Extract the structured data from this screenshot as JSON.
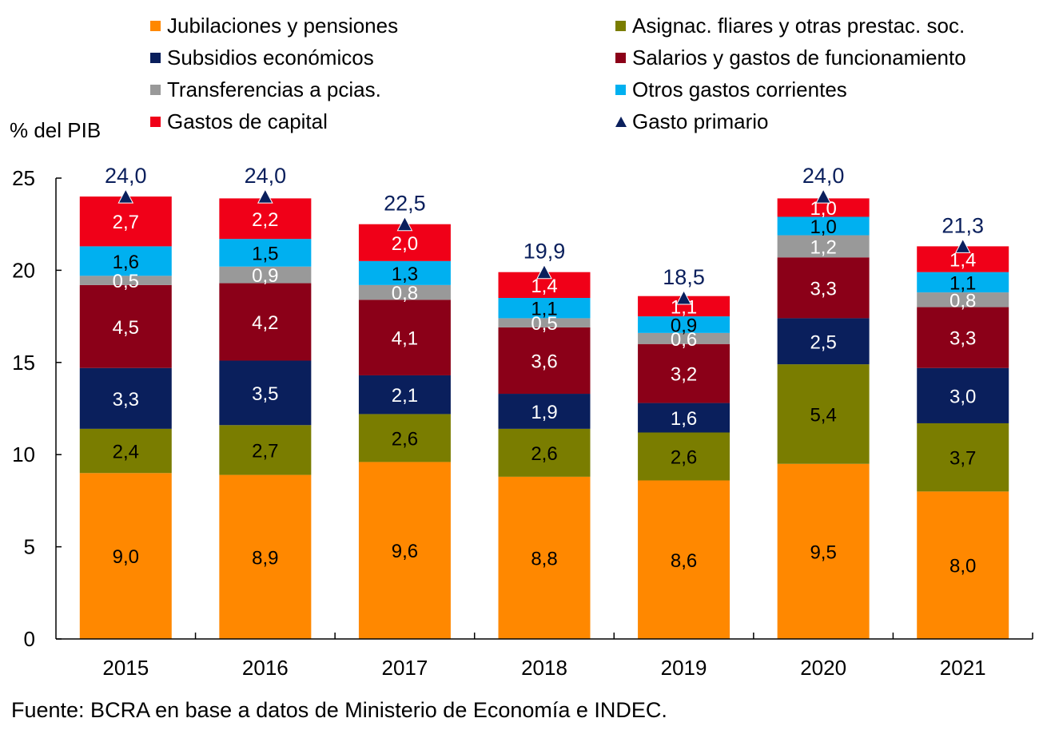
{
  "chart_data": {
    "type": "bar",
    "stacked": true,
    "title": "",
    "ylabel": "% del PIB",
    "xlabel": "",
    "ylim": [
      0,
      25
    ],
    "yticks": [
      0,
      5,
      10,
      15,
      20,
      25
    ],
    "grid": false,
    "legend_position": "top",
    "categories": [
      "2015",
      "2016",
      "2017",
      "2018",
      "2019",
      "2020",
      "2021"
    ],
    "series": [
      {
        "name": "Jubilaciones y pensiones",
        "color": "#ff8800",
        "label_color": "#000000",
        "values": [
          9.0,
          8.9,
          9.6,
          8.8,
          8.6,
          9.5,
          8.0
        ],
        "labels": [
          "9,0",
          "8,9",
          "9,6",
          "8,8",
          "8,6",
          "9,5",
          "8,0"
        ]
      },
      {
        "name": "Asignac. fliares y otras prestac. soc.",
        "color": "#7a7d00",
        "label_color": "#000000",
        "values": [
          2.4,
          2.7,
          2.6,
          2.6,
          2.6,
          5.4,
          3.7
        ],
        "labels": [
          "2,4",
          "2,7",
          "2,6",
          "2,6",
          "2,6",
          "5,4",
          "3,7"
        ]
      },
      {
        "name": "Subsidios económicos",
        "color": "#0a1f5c",
        "label_color": "#ffffff",
        "values": [
          3.3,
          3.5,
          2.1,
          1.9,
          1.6,
          2.5,
          3.0
        ],
        "labels": [
          "3,3",
          "3,5",
          "2,1",
          "1,9",
          "1,6",
          "2,5",
          "3,0"
        ]
      },
      {
        "name": "Salarios y gastos de funcionamiento",
        "color": "#8b0018",
        "label_color": "#ffffff",
        "values": [
          4.5,
          4.2,
          4.1,
          3.6,
          3.2,
          3.3,
          3.3
        ],
        "labels": [
          "4,5",
          "4,2",
          "4,1",
          "3,6",
          "3,2",
          "3,3",
          "3,3"
        ]
      },
      {
        "name": "Transferencias a pcias.",
        "color": "#999999",
        "label_color": "#ffffff",
        "values": [
          0.5,
          0.9,
          0.8,
          0.5,
          0.6,
          1.2,
          0.8
        ],
        "labels": [
          "0,5",
          "0,9",
          "0,8",
          "0,5",
          "0,6",
          "1,2",
          "0,8"
        ]
      },
      {
        "name": "Otros gastos corrientes",
        "color": "#00b0f0",
        "label_color": "#000000",
        "values": [
          1.6,
          1.5,
          1.3,
          1.1,
          0.9,
          1.0,
          1.1
        ],
        "labels": [
          "1,6",
          "1,5",
          "1,3",
          "1,1",
          "0,9",
          "1,0",
          "1,1"
        ]
      },
      {
        "name": "Gastos de capital",
        "color": "#f00018",
        "label_color": "#ffffff",
        "values": [
          2.7,
          2.2,
          2.0,
          1.4,
          1.1,
          1.0,
          1.4
        ],
        "labels": [
          "2,7",
          "2,2",
          "2,0",
          "1,4",
          "1,1",
          "1,0",
          "1,4"
        ]
      }
    ],
    "line_series": {
      "name": "Gasto primario",
      "marker": "triangle",
      "color": "#0a1f5c",
      "values": [
        24.0,
        24.0,
        22.5,
        19.9,
        18.5,
        24.0,
        21.3
      ],
      "labels": [
        "24,0",
        "24,0",
        "22,5",
        "19,9",
        "18,5",
        "24,0",
        "21,3"
      ]
    }
  },
  "legend": {
    "items": [
      {
        "label": "Jubilaciones y pensiones",
        "color": "#ff8800",
        "type": "square"
      },
      {
        "label": "Asignac. fliares y otras prestac. soc.",
        "color": "#7a7d00",
        "type": "square"
      },
      {
        "label": "Subsidios económicos",
        "color": "#0a1f5c",
        "type": "square"
      },
      {
        "label": "Salarios y gastos de funcionamiento",
        "color": "#8b0018",
        "type": "square"
      },
      {
        "label": "Transferencias a pcias.",
        "color": "#999999",
        "type": "square"
      },
      {
        "label": "Otros gastos corrientes",
        "color": "#00b0f0",
        "type": "square"
      },
      {
        "label": "Gastos de capital",
        "color": "#f00018",
        "type": "square"
      },
      {
        "label": "Gasto primario",
        "color": "#0a1f5c",
        "type": "triangle"
      }
    ]
  },
  "unit_label": "% del PIB",
  "source": "Fuente: BCRA en base a datos de Ministerio de Economía e INDEC."
}
